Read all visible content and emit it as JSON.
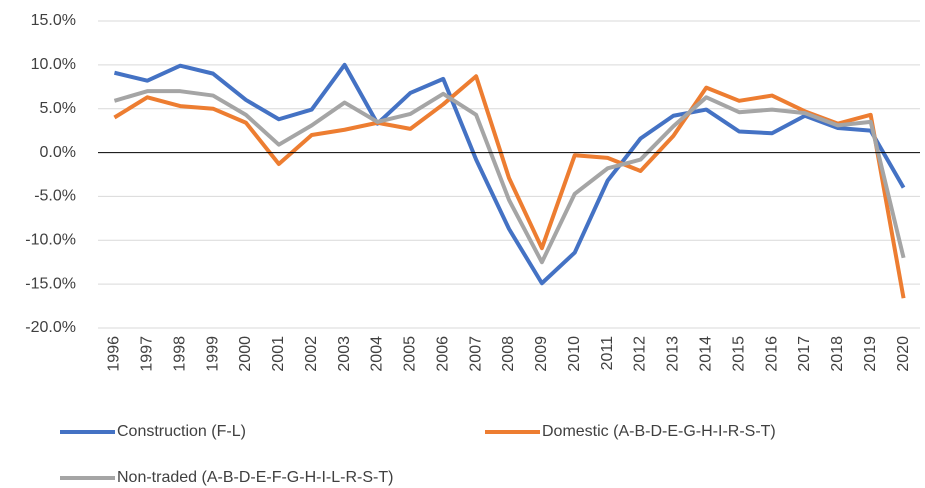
{
  "chart_data": {
    "type": "line",
    "categories": [
      "1996",
      "1997",
      "1998",
      "1999",
      "2000",
      "2001",
      "2002",
      "2003",
      "2004",
      "2005",
      "2006",
      "2007",
      "2008",
      "2009",
      "2010",
      "2011",
      "2012",
      "2013",
      "2014",
      "2015",
      "2016",
      "2017",
      "2018",
      "2019",
      "2020"
    ],
    "series": [
      {
        "name": "Construction (F-L)",
        "color": "#4472c4",
        "values": [
          9.1,
          8.2,
          9.9,
          9.0,
          6.0,
          3.8,
          4.9,
          10.0,
          3.3,
          6.8,
          8.4,
          -0.8,
          -8.7,
          -14.9,
          -11.4,
          -3.2,
          1.6,
          4.2,
          4.9,
          2.4,
          2.2,
          4.2,
          2.8,
          2.5,
          -4.0
        ]
      },
      {
        "name": "Domestic (A-B-D-E-G-H-I-R-S-T)",
        "color": "#ed7d31",
        "values": [
          4.0,
          6.3,
          5.3,
          5.0,
          3.4,
          -1.3,
          2.0,
          2.6,
          3.4,
          2.7,
          5.5,
          8.7,
          -2.9,
          -10.9,
          -0.3,
          -0.6,
          -2.1,
          1.9,
          7.4,
          5.9,
          6.5,
          4.7,
          3.3,
          4.3,
          -16.6
        ]
      },
      {
        "name": "Non-traded (A-B-D-E-F-G-H-I-L-R-S-T)",
        "color": "#a5a5a5",
        "values": [
          5.9,
          7.0,
          7.0,
          6.5,
          4.3,
          0.9,
          3.1,
          5.7,
          3.5,
          4.4,
          6.7,
          4.3,
          -5.4,
          -12.5,
          -4.7,
          -1.8,
          -0.8,
          3.0,
          6.3,
          4.6,
          4.9,
          4.5,
          3.1,
          3.5,
          -12.0
        ]
      }
    ],
    "ylim": [
      -20,
      15
    ],
    "yticks": [
      {
        "value": -20,
        "label": "-20.0%"
      },
      {
        "value": -15,
        "label": "-15.0%"
      },
      {
        "value": -10,
        "label": "-10.0%"
      },
      {
        "value": -5,
        "label": "-5.0%"
      },
      {
        "value": 0,
        "label": "0.0%"
      },
      {
        "value": 5,
        "label": "5.0%"
      },
      {
        "value": 10,
        "label": "10.0%"
      },
      {
        "value": 15,
        "label": "15.0%"
      }
    ],
    "grid": true,
    "legend": "bottom"
  }
}
